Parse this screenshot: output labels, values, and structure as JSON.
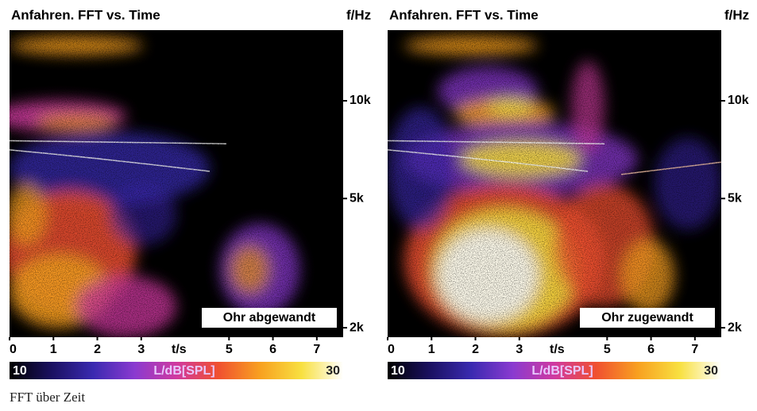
{
  "chart_data": [
    {
      "type": "spectrogram",
      "title": "Anfahren. FFT vs. Time",
      "y_label": "f/Hz",
      "x_label": "t/s",
      "annotation": "Ohr abgewandt",
      "colorbar_label": "L/dB[SPL]",
      "xlim": [
        0,
        7.6
      ],
      "xticks": [
        0,
        1,
        2,
        3,
        5,
        6,
        7
      ],
      "ylim": [
        1870,
        16500
      ],
      "log_y": true,
      "yticks": [
        {
          "value": 10000,
          "label": "10k"
        },
        {
          "value": 5000,
          "label": "5k"
        },
        {
          "value": 2000,
          "label": "2k"
        }
      ],
      "clim": [
        10,
        30
      ],
      "cticks": [
        10,
        30
      ],
      "colormap": [
        "#000000",
        "#1a1060",
        "#3a2ab0",
        "#8a3ad0",
        "#d03aa0",
        "#f05030",
        "#f8a020",
        "#f8e040",
        "#ffffff"
      ]
    },
    {
      "type": "spectrogram",
      "title": "Anfahren. FFT vs. Time",
      "y_label": "f/Hz",
      "x_label": "t/s",
      "annotation": "Ohr zugewandt",
      "colorbar_label": "L/dB[SPL]",
      "xlim": [
        0,
        7.6
      ],
      "xticks": [
        0,
        1,
        2,
        3,
        5,
        6,
        7
      ],
      "ylim": [
        1870,
        16500
      ],
      "log_y": true,
      "yticks": [
        {
          "value": 10000,
          "label": "10k"
        },
        {
          "value": 5000,
          "label": "5k"
        },
        {
          "value": 2000,
          "label": "2k"
        }
      ],
      "clim": [
        10,
        30
      ],
      "cticks": [
        10,
        30
      ],
      "colormap": [
        "#000000",
        "#1a1060",
        "#3a2ab0",
        "#8a3ad0",
        "#d03aa0",
        "#f05030",
        "#f8a020",
        "#f8e040",
        "#ffffff"
      ]
    }
  ],
  "caption": "FFT über Zeit"
}
